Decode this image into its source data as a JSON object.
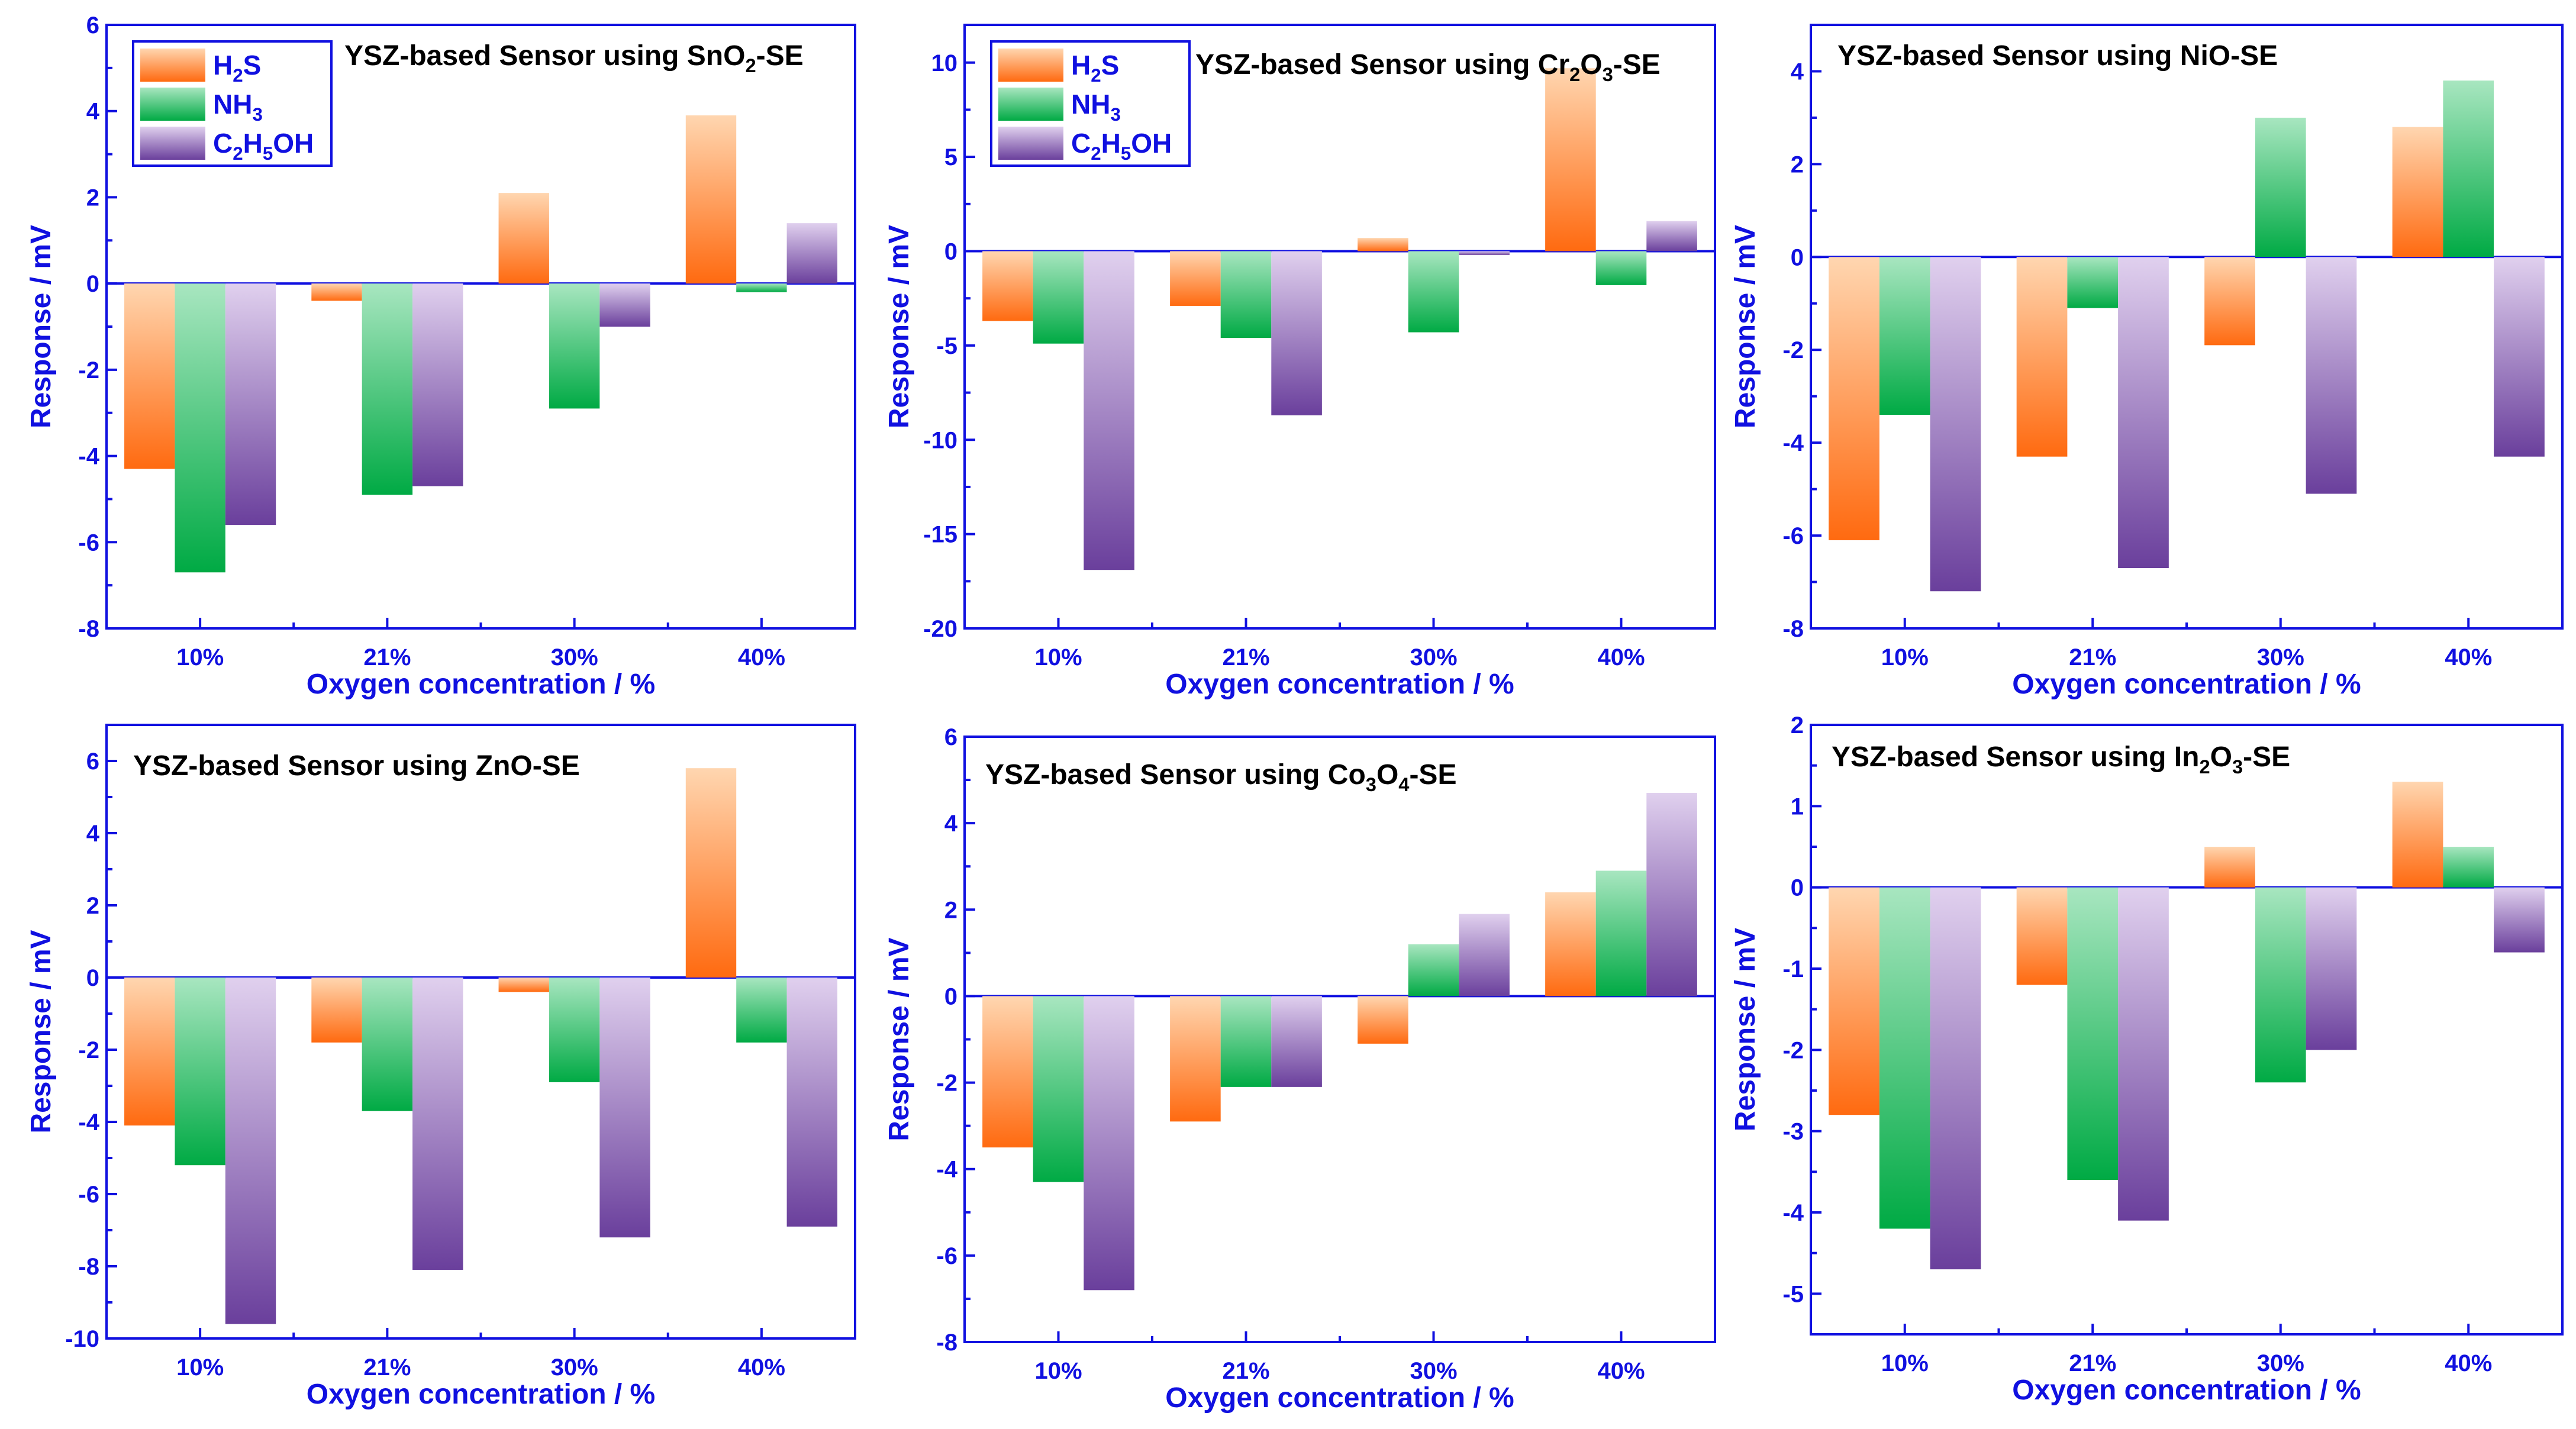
{
  "colors": {
    "axis": "#1010e0",
    "H2S": [
      "#ffd6b0",
      "#ff6a10"
    ],
    "NH3": [
      "#a8e6c0",
      "#00aa44"
    ],
    "C2H5OH": [
      "#e0d0ee",
      "#6a3f9c"
    ]
  },
  "legend": {
    "entries": [
      {
        "key": "H2S",
        "base": "H",
        "sub": "2",
        "rest": "S"
      },
      {
        "key": "NH3",
        "base": "NH",
        "sub": "3",
        "rest": ""
      },
      {
        "key": "C2H5OH",
        "base": "C",
        "sub": "2",
        "mid": "H",
        "sub2": "5",
        "rest": "OH"
      }
    ]
  },
  "chart_data": [
    {
      "type": "bar",
      "title": {
        "prefix": "YSZ-based Sensor using SnO",
        "sub": "2",
        "suffix": "-SE"
      },
      "xlabel": "Oxygen concentration / %",
      "ylabel": "Response / mV",
      "categories": [
        "10%",
        "21%",
        "30%",
        "40%"
      ],
      "ylim": [
        -8,
        6
      ],
      "yticks": [
        -8,
        -6,
        -4,
        -2,
        0,
        2,
        4,
        6
      ],
      "legend": true,
      "series": [
        {
          "name": "H2S",
          "values": [
            -4.3,
            -0.4,
            2.1,
            3.9
          ]
        },
        {
          "name": "NH3",
          "values": [
            -6.7,
            -4.9,
            -2.9,
            -0.2
          ]
        },
        {
          "name": "C2H5OH",
          "values": [
            -5.6,
            -4.7,
            -1.0,
            1.4
          ]
        }
      ]
    },
    {
      "type": "bar",
      "title": {
        "prefix": "YSZ-based Sensor using Cr",
        "sub": "2",
        "mid": "O",
        "sub2": "3",
        "suffix": "-SE"
      },
      "xlabel": "Oxygen concentration / %",
      "ylabel": "Response / mV",
      "categories": [
        "10%",
        "21%",
        "30%",
        "40%"
      ],
      "ylim": [
        -20,
        12
      ],
      "yticks": [
        -20,
        -15,
        -10,
        -5,
        0,
        5,
        10
      ],
      "legend": true,
      "series": [
        {
          "name": "H2S",
          "values": [
            -3.7,
            -2.9,
            0.7,
            9.7
          ]
        },
        {
          "name": "NH3",
          "values": [
            -4.9,
            -4.6,
            -4.3,
            -1.8
          ]
        },
        {
          "name": "C2H5OH",
          "values": [
            -16.9,
            -8.7,
            -0.2,
            1.6
          ]
        }
      ]
    },
    {
      "type": "bar",
      "title": {
        "prefix": "YSZ-based Sensor using NiO-SE"
      },
      "xlabel": "Oxygen concentration / %",
      "ylabel": "Response / mV",
      "categories": [
        "10%",
        "21%",
        "30%",
        "40%"
      ],
      "ylim": [
        -8,
        5
      ],
      "yticks": [
        -8,
        -6,
        -4,
        -2,
        0,
        2,
        4
      ],
      "legend": false,
      "series": [
        {
          "name": "H2S",
          "values": [
            -6.1,
            -4.3,
            -1.9,
            2.8
          ]
        },
        {
          "name": "NH3",
          "values": [
            -3.4,
            -1.1,
            3.0,
            3.8
          ]
        },
        {
          "name": "C2H5OH",
          "values": [
            -7.2,
            -6.7,
            -5.1,
            -4.3
          ]
        }
      ]
    },
    {
      "type": "bar",
      "title": {
        "prefix": "YSZ-based Sensor using ZnO-SE"
      },
      "xlabel": "Oxygen concentration / %",
      "ylabel": "Response / mV",
      "categories": [
        "10%",
        "21%",
        "30%",
        "40%"
      ],
      "ylim": [
        -10,
        7
      ],
      "yticks": [
        -10,
        -8,
        -6,
        -4,
        -2,
        0,
        2,
        4,
        6
      ],
      "legend": false,
      "series": [
        {
          "name": "H2S",
          "values": [
            -4.1,
            -1.8,
            -0.4,
            5.8
          ]
        },
        {
          "name": "NH3",
          "values": [
            -5.2,
            -3.7,
            -2.9,
            -1.8
          ]
        },
        {
          "name": "C2H5OH",
          "values": [
            -9.6,
            -8.1,
            -7.2,
            -6.9
          ]
        }
      ]
    },
    {
      "type": "bar",
      "title": {
        "prefix": "YSZ-based Sensor using Co",
        "sub": "3",
        "mid": "O",
        "sub2": "4",
        "suffix": "-SE"
      },
      "xlabel": "Oxygen concentration / %",
      "ylabel": "Response / mV",
      "categories": [
        "10%",
        "21%",
        "30%",
        "40%"
      ],
      "ylim": [
        -8,
        6
      ],
      "yticks": [
        -8,
        -6,
        -4,
        -2,
        0,
        2,
        4,
        6
      ],
      "legend": false,
      "series": [
        {
          "name": "H2S",
          "values": [
            -3.5,
            -2.9,
            -1.1,
            2.4
          ]
        },
        {
          "name": "NH3",
          "values": [
            -4.3,
            -2.1,
            1.2,
            2.9
          ]
        },
        {
          "name": "C2H5OH",
          "values": [
            -6.8,
            -2.1,
            1.9,
            4.7
          ]
        }
      ]
    },
    {
      "type": "bar",
      "title": {
        "prefix": "YSZ-based Sensor using In",
        "sub": "2",
        "mid": "O",
        "sub2": "3",
        "suffix": "-SE"
      },
      "xlabel": "Oxygen concentration / %",
      "ylabel": "Response / mV",
      "categories": [
        "10%",
        "21%",
        "30%",
        "40%"
      ],
      "ylim": [
        -5.5,
        2
      ],
      "yticks": [
        -5,
        -4,
        -3,
        -2,
        -1,
        0,
        1,
        2
      ],
      "legend": false,
      "series": [
        {
          "name": "H2S",
          "values": [
            -2.8,
            -1.2,
            0.5,
            1.3
          ]
        },
        {
          "name": "NH3",
          "values": [
            -4.2,
            -3.6,
            -2.4,
            0.5
          ]
        },
        {
          "name": "C2H5OH",
          "values": [
            -4.7,
            -4.1,
            -2.0,
            -0.8
          ]
        }
      ]
    }
  ]
}
